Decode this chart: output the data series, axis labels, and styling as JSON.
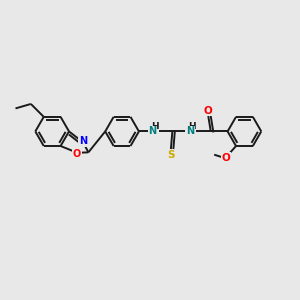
{
  "bg_color": "#e8e8e8",
  "bond_color": "#1a1a1a",
  "N_color": "#0000ff",
  "O_color": "#ff0000",
  "S_color": "#ccaa00",
  "NH_color": "#008080",
  "line_width": 1.4,
  "figsize": [
    3.0,
    3.0
  ],
  "dpi": 100,
  "xlim": [
    0,
    12
  ],
  "ylim": [
    0,
    10
  ]
}
